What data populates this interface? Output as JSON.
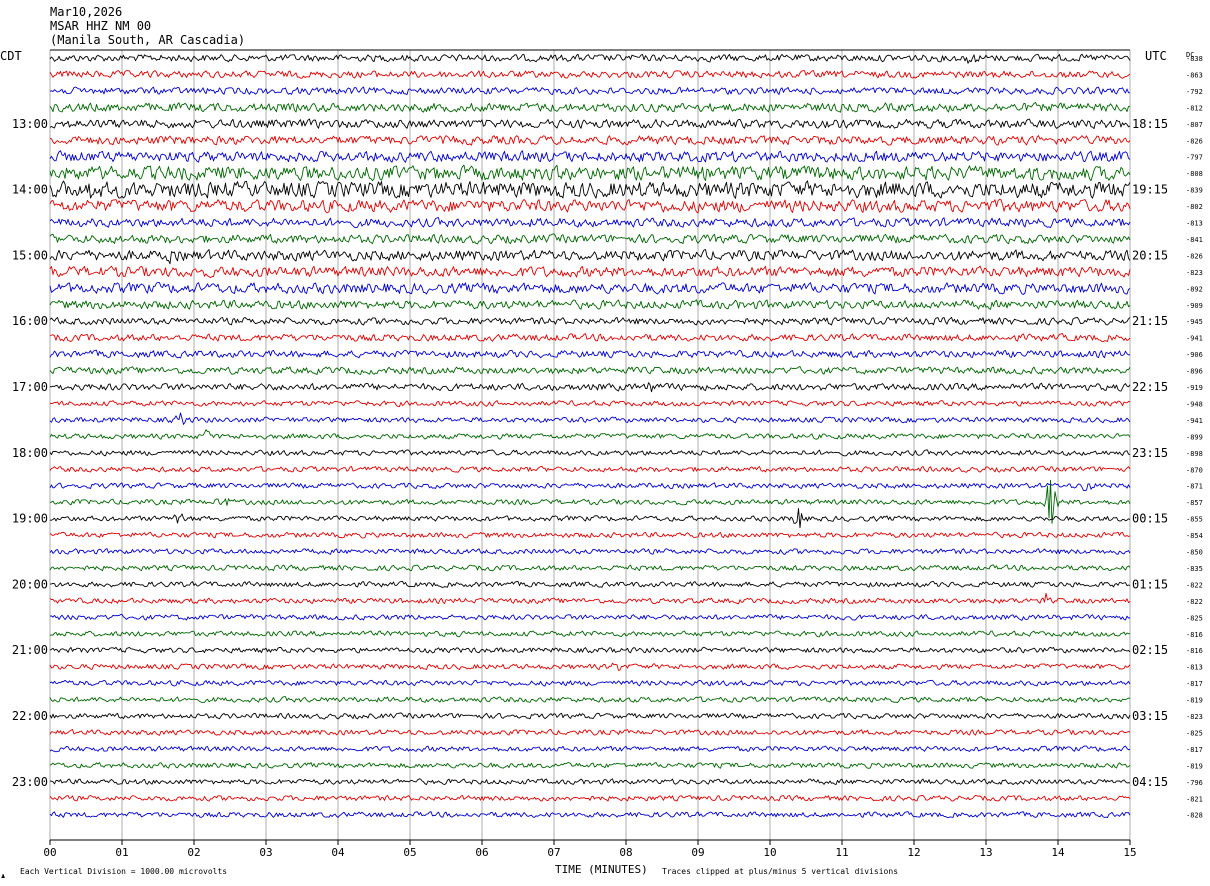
{
  "header": {
    "date": "Mar10,2026",
    "station": "MSAR HHZ NM 00",
    "location": "(Manila South, AR Cascadia)"
  },
  "left_timezone": "CDT",
  "right_timezone": "UTC",
  "dc_label": "DC",
  "footer": {
    "scale_note": "Each Vertical Division = 1000.00 microvolts",
    "clip_note": "Traces clipped at plus/minus 5 vertical divisions",
    "x_axis_title": "TIME (MINUTES)",
    "corner_mark": "♟"
  },
  "colors": {
    "trace_cycle": [
      "#000000",
      "#e00000",
      "#0000d0",
      "#006600"
    ],
    "grid": "#888888",
    "background": "#ffffff"
  },
  "chart_data": {
    "type": "line",
    "title": "",
    "xlabel": "TIME (MINUTES)",
    "ylabel": "",
    "xlim": [
      0,
      15
    ],
    "x_ticks": [
      "00",
      "01",
      "02",
      "03",
      "04",
      "05",
      "06",
      "07",
      "08",
      "09",
      "10",
      "11",
      "12",
      "13",
      "14",
      "15"
    ],
    "row_minutes": 15,
    "rows_per_hour": 4,
    "left_hour_labels": [
      "13:00",
      "14:00",
      "15:00",
      "16:00",
      "17:00",
      "18:00",
      "19:00",
      "20:00",
      "21:00",
      "22:00",
      "23:00"
    ],
    "right_hour_labels": [
      "18:15",
      "19:15",
      "20:15",
      "21:15",
      "22:15",
      "23:15",
      "00:15",
      "01:15",
      "02:15",
      "03:15",
      "04:15"
    ],
    "dc_offsets": [
      -838,
      -863,
      -792,
      -812,
      -807,
      -826,
      -797,
      -808,
      -839,
      -802,
      -813,
      -841,
      -826,
      -823,
      -892,
      -909,
      -945,
      -941,
      -906,
      -896,
      -919,
      -948,
      -941,
      -899,
      -898,
      -870,
      -871,
      -857,
      -855,
      -854,
      -850,
      -835,
      -822,
      -822,
      -825,
      -816,
      -816,
      -813,
      -817,
      -819,
      -823,
      -825,
      -817,
      -819,
      -796,
      -821,
      -828
    ],
    "row_noise_amplitude": [
      4,
      4,
      4,
      5,
      5,
      5,
      6,
      8,
      9,
      7,
      5,
      5,
      6,
      6,
      6,
      5,
      4,
      4,
      4,
      4,
      4,
      3,
      3,
      3,
      3,
      3,
      3,
      3,
      3,
      3,
      3,
      3,
      3,
      3,
      3,
      3,
      3,
      3,
      3,
      3,
      3,
      3,
      3,
      3,
      3,
      3,
      3
    ],
    "events": [
      {
        "row": 0,
        "minute": 12.8,
        "amplitude": 6
      },
      {
        "row": 8,
        "minute": 0.6,
        "amplitude": 12
      },
      {
        "row": 12,
        "minute": 1.6,
        "amplitude": 11
      },
      {
        "row": 20,
        "minute": 8.4,
        "amplitude": 9
      },
      {
        "row": 22,
        "minute": 1.8,
        "amplitude": 8
      },
      {
        "row": 23,
        "minute": 2.2,
        "amplitude": 8
      },
      {
        "row": 26,
        "minute": 14.4,
        "amplitude": 9
      },
      {
        "row": 27,
        "minute": 2.4,
        "amplitude": 7
      },
      {
        "row": 27,
        "minute": 13.9,
        "amplitude": 30
      },
      {
        "row": 28,
        "minute": 1.8,
        "amplitude": 9
      },
      {
        "row": 28,
        "minute": 10.4,
        "amplitude": 12
      },
      {
        "row": 33,
        "minute": 13.8,
        "amplitude": 8
      },
      {
        "row": 37,
        "minute": 7.9,
        "amplitude": 7
      },
      {
        "row": 41,
        "minute": 3.2,
        "amplitude": 8
      }
    ]
  }
}
